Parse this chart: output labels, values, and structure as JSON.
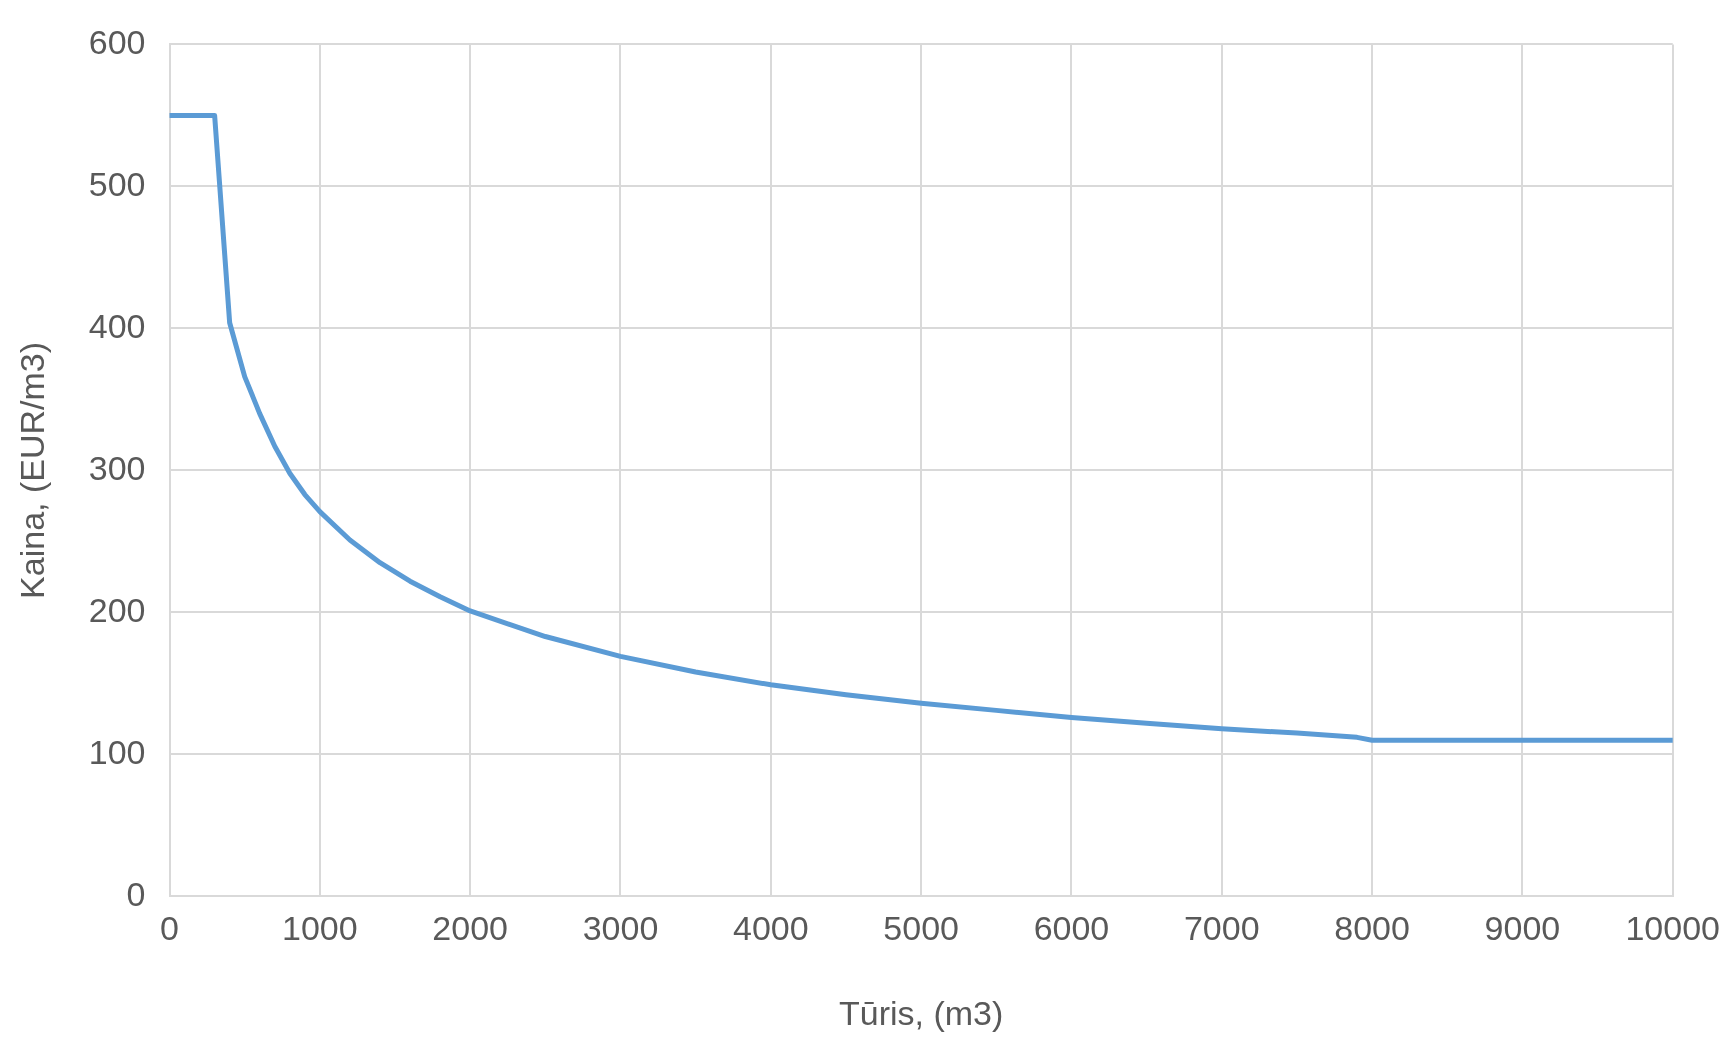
{
  "chart_data": {
    "type": "line",
    "xlabel": "Tūris, (m3)",
    "ylabel": "Kaina, (EUR/m3)",
    "x": [
      0,
      300,
      400,
      500,
      600,
      700,
      800,
      900,
      1000,
      1200,
      1400,
      1600,
      1800,
      2000,
      2500,
      3000,
      3500,
      4000,
      4500,
      5000,
      5500,
      6000,
      6500,
      7000,
      7500,
      7900,
      8000,
      10000
    ],
    "series": [
      {
        "color": "#5b9bd5",
        "values": [
          550,
          550,
          404,
          366,
          340,
          317,
          298,
          283,
          271,
          251,
          235,
          222,
          211,
          201,
          183,
          169,
          158,
          149,
          142,
          136,
          131,
          126,
          122,
          118,
          115,
          112,
          110,
          110
        ]
      }
    ],
    "xlim": [
      0,
      10000
    ],
    "xticks": [
      0,
      1000,
      2000,
      3000,
      4000,
      5000,
      6000,
      7000,
      8000,
      9000,
      10000
    ],
    "ylim": [
      0,
      600
    ],
    "yticks": [
      0,
      100,
      200,
      300,
      400,
      500,
      600
    ],
    "grid": true,
    "legend": false,
    "marker": "none",
    "line_style": "solid"
  }
}
